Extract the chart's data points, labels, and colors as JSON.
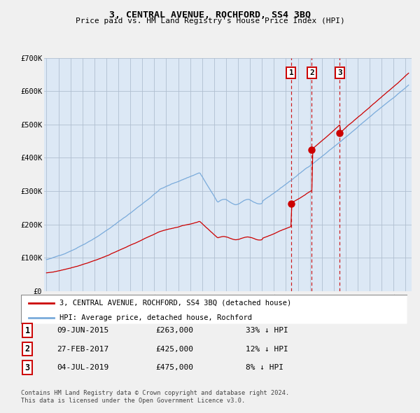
{
  "title": "3, CENTRAL AVENUE, ROCHFORD, SS4 3BQ",
  "subtitle": "Price paid vs. HM Land Registry's House Price Index (HPI)",
  "legend_line1": "3, CENTRAL AVENUE, ROCHFORD, SS4 3BQ (detached house)",
  "legend_line2": "HPI: Average price, detached house, Rochford",
  "footnote1": "Contains HM Land Registry data © Crown copyright and database right 2024.",
  "footnote2": "This data is licensed under the Open Government Licence v3.0.",
  "transactions": [
    {
      "num": 1,
      "date": "09-JUN-2015",
      "price": 263000,
      "hpi_diff": "33% ↓ HPI",
      "year_x": 2015.44
    },
    {
      "num": 2,
      "date": "27-FEB-2017",
      "price": 425000,
      "hpi_diff": "12% ↓ HPI",
      "year_x": 2017.16
    },
    {
      "num": 3,
      "date": "04-JUL-2019",
      "price": 475000,
      "hpi_diff": "8% ↓ HPI",
      "year_x": 2019.5
    }
  ],
  "hpi_color": "#7aabdb",
  "price_color": "#cc0000",
  "background_plot": "#dce8f5",
  "background_fig": "#f0f0f0",
  "grid_color": "#b0bfd0",
  "dashed_color": "#cc0000",
  "ylim": [
    0,
    700000
  ],
  "yticks": [
    0,
    100000,
    200000,
    300000,
    400000,
    500000,
    600000,
    700000
  ],
  "ytick_labels": [
    "£0",
    "£100K",
    "£200K",
    "£300K",
    "£400K",
    "£500K",
    "£600K",
    "£700K"
  ],
  "xlim_start": 1994.8,
  "xlim_end": 2025.5
}
